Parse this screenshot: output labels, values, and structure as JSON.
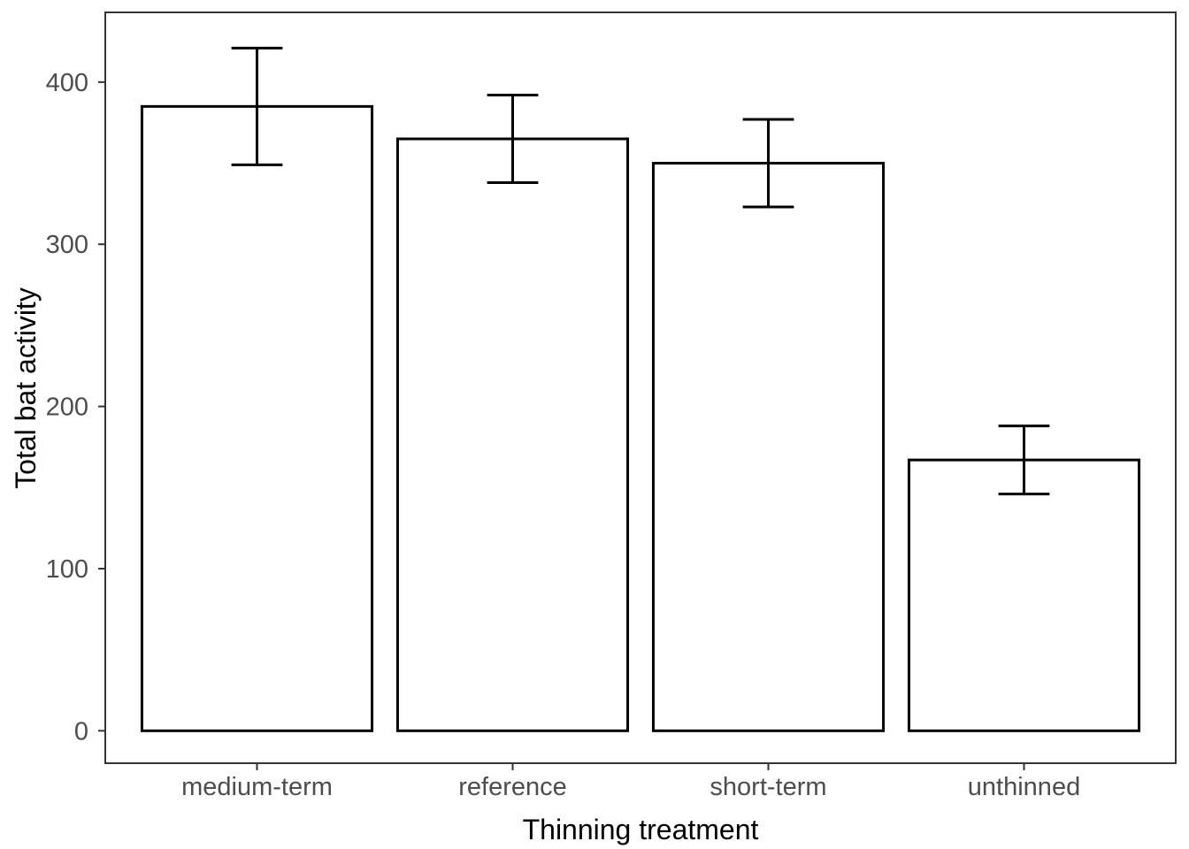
{
  "chart_data": {
    "type": "bar",
    "title": "",
    "categories": [
      "medium-term",
      "reference",
      "short-term",
      "unthinned"
    ],
    "values": [
      385,
      365,
      350,
      167
    ],
    "error_upper": [
      421,
      392,
      377,
      188
    ],
    "error_lower": [
      349,
      338,
      323,
      146
    ],
    "xlabel": "Thinning treatment",
    "ylabel": "Total bat activity",
    "yticks": [
      0,
      100,
      200,
      300,
      400
    ],
    "ylim": [
      -20,
      443
    ],
    "grid": false,
    "legend_position": "none",
    "bar_fill": "#ffffff",
    "bar_stroke": "#000000",
    "error_bar_color": "#000000",
    "axis_text_color": "#4d4d4d",
    "axis_title_color": "#000000",
    "panel_border_color": "#333333",
    "tick_mark_color": "#333333",
    "background": "#ffffff"
  }
}
